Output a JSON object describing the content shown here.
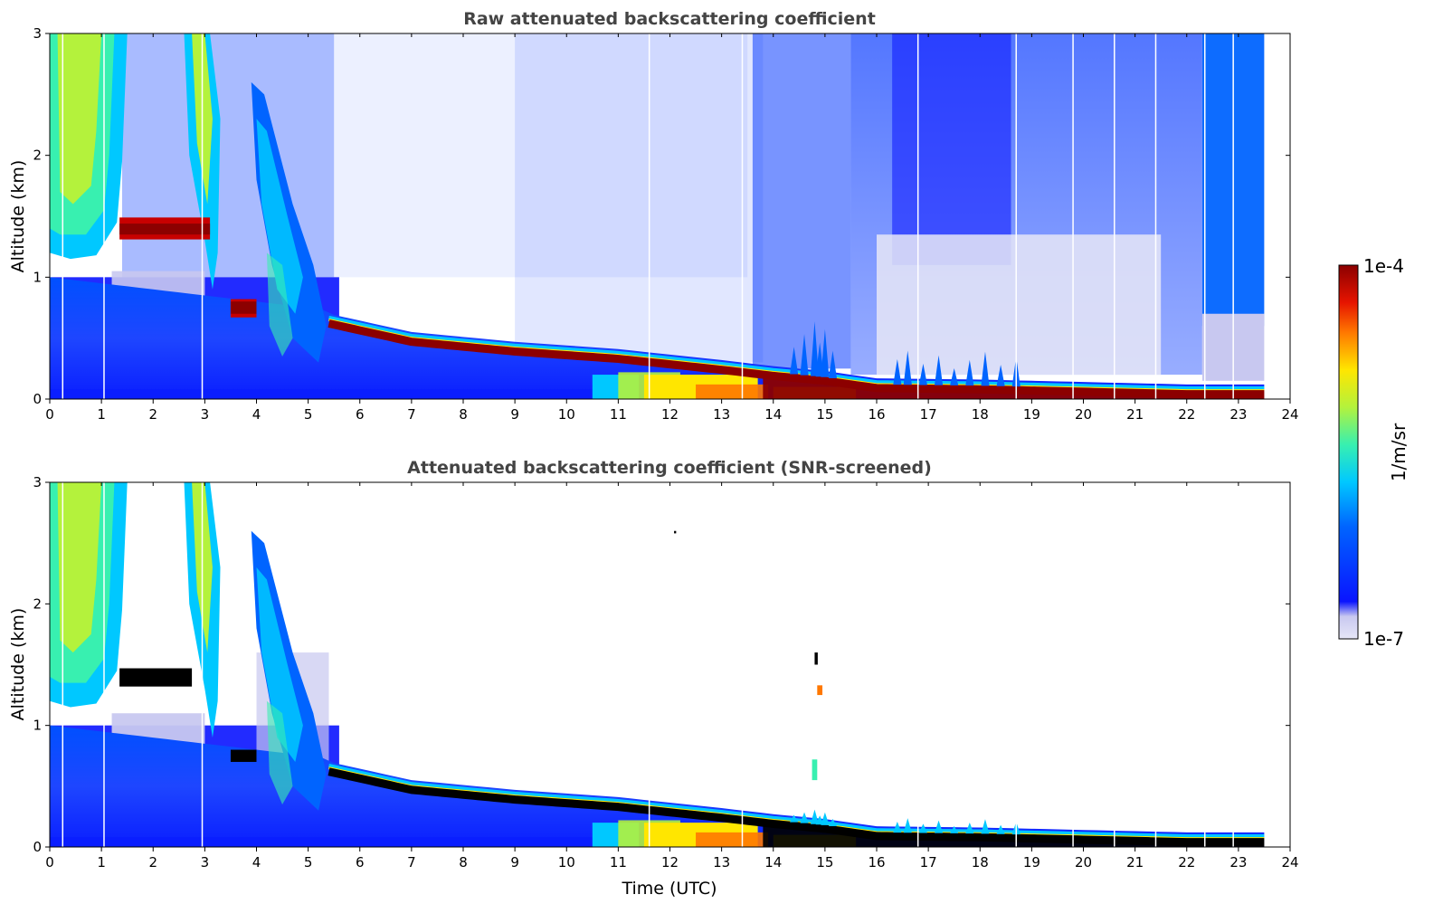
{
  "chart_data": [
    {
      "type": "heatmap",
      "title": "Raw attenuated backscattering coefficient",
      "xlabel": "",
      "ylabel": "Altitude (km)",
      "xlim": [
        0,
        24
      ],
      "ylim": [
        0,
        3
      ],
      "x_ticks": [
        "0",
        "1",
        "2",
        "3",
        "4",
        "5",
        "6",
        "7",
        "8",
        "9",
        "10",
        "11",
        "12",
        "13",
        "14",
        "15",
        "16",
        "17",
        "18",
        "19",
        "20",
        "21",
        "22",
        "23",
        "24"
      ],
      "y_ticks": [
        "0",
        "1",
        "2",
        "3"
      ],
      "data_end_hour": 23.5,
      "boundary_layer_top_km": [
        {
          "t": 5.4,
          "alt": 0.65
        },
        {
          "t": 7,
          "alt": 0.5
        },
        {
          "t": 9,
          "alt": 0.42
        },
        {
          "t": 11,
          "alt": 0.36
        },
        {
          "t": 13,
          "alt": 0.27
        },
        {
          "t": 14,
          "alt": 0.22
        },
        {
          "t": 15,
          "alt": 0.18
        },
        {
          "t": 16,
          "alt": 0.12
        },
        {
          "t": 18,
          "alt": 0.11
        },
        {
          "t": 20,
          "alt": 0.09
        },
        {
          "t": 22,
          "alt": 0.07
        },
        {
          "t": 23.5,
          "alt": 0.07
        }
      ],
      "cloud_layers": [
        {
          "t_start": 1.35,
          "t_end": 3.1,
          "alt_km": 1.4
        },
        {
          "t_start": 3.5,
          "t_end": 4.0,
          "alt_km": 0.75
        }
      ]
    },
    {
      "type": "heatmap",
      "title": "Attenuated backscattering coefficient (SNR-screened)",
      "xlabel": "Time (UTC)",
      "ylabel": "Altitude (km)",
      "xlim": [
        0,
        24
      ],
      "ylim": [
        0,
        3
      ],
      "x_ticks": [
        "0",
        "1",
        "2",
        "3",
        "4",
        "5",
        "6",
        "7",
        "8",
        "9",
        "10",
        "11",
        "12",
        "13",
        "14",
        "15",
        "16",
        "17",
        "18",
        "19",
        "20",
        "21",
        "22",
        "23",
        "24"
      ],
      "y_ticks": [
        "0",
        "1",
        "2",
        "3"
      ],
      "data_end_hour": 23.5
    }
  ],
  "colorbar": {
    "label": "1/m/sr",
    "max_label": "1e-4",
    "min_label": "1e-7",
    "colormap": [
      "#e6e6f7",
      "#c8c8f0",
      "#0a14ff",
      "#0064ff",
      "#00c8ff",
      "#38f0b0",
      "#b4f23c",
      "#ffe600",
      "#ff7800",
      "#e61400",
      "#8c0000"
    ]
  }
}
